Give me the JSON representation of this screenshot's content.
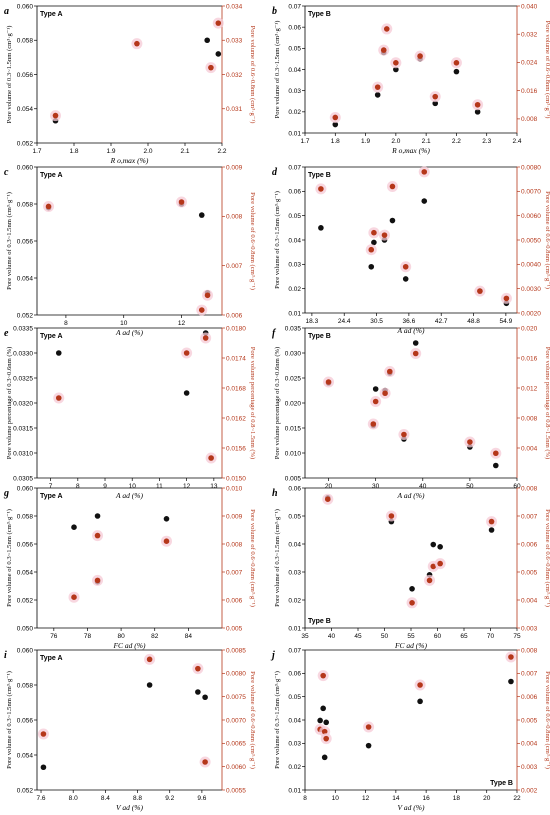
{
  "chart_data": [
    {
      "id": "a",
      "type": "scatter",
      "letter": "a",
      "type_label": "Type A",
      "label_pos": "top-left",
      "xlabel": "R o,max (%)",
      "ylabel": "Pore volume of 0.3~1.5nm (cm³·g⁻¹)",
      "ylabel_right": "Pore volume of 0.6~0.8nm (cm³·g⁻¹)",
      "xlim": [
        1.7,
        2.2
      ],
      "ylim": [
        0.052,
        0.06
      ],
      "ylim_right": [
        0.03,
        0.034
      ],
      "xticks": [
        "1.7",
        "1.8",
        "1.9",
        "2.0",
        "2.1",
        "2.2"
      ],
      "yticks": [
        "0.052",
        "0.054",
        "0.056",
        "0.058",
        "0.060"
      ],
      "yticks_right": [
        "0.031",
        "0.032",
        "0.033",
        "0.034"
      ],
      "series": [
        {
          "axis": "left",
          "points": [
            [
              1.75,
              0.0533
            ],
            [
              2.16,
              0.058
            ],
            [
              2.19,
              0.0572
            ]
          ]
        },
        {
          "axis": "right",
          "points": [
            [
              1.75,
              0.0308
            ],
            [
              1.97,
              0.0329
            ],
            [
              2.17,
              0.0322
            ],
            [
              2.19,
              0.0335
            ]
          ]
        }
      ]
    },
    {
      "id": "b",
      "type": "scatter",
      "letter": "b",
      "type_label": "Type B",
      "label_pos": "top-left",
      "xlabel": "R o,max (%)",
      "ylabel": "Pore volume of 0.3~1.5nm (cm³·g⁻¹)",
      "ylabel_right": "Pore volume of 0.6~0.8nm (cm³·g⁻¹)",
      "xlim": [
        1.7,
        2.4
      ],
      "ylim": [
        0.01,
        0.07
      ],
      "ylim_right": [
        0.004,
        0.04
      ],
      "xticks": [
        "1.7",
        "1.8",
        "1.9",
        "2.0",
        "2.1",
        "2.2",
        "2.3",
        "2.4"
      ],
      "yticks": [
        "0.01",
        "0.02",
        "0.03",
        "0.04",
        "0.05",
        "0.06",
        "0.07"
      ],
      "yticks_right": [
        "0.008",
        "0.016",
        "0.024",
        "0.032",
        "0.040"
      ],
      "series": [
        {
          "axis": "left",
          "points": [
            [
              1.8,
              0.014
            ],
            [
              1.94,
              0.028
            ],
            [
              1.96,
              0.048
            ],
            [
              2.0,
              0.04
            ],
            [
              2.08,
              0.045
            ],
            [
              2.13,
              0.024
            ],
            [
              2.2,
              0.039
            ],
            [
              2.27,
              0.02
            ]
          ]
        },
        {
          "axis": "right",
          "points": [
            [
              1.8,
              0.0084
            ],
            [
              1.94,
              0.017
            ],
            [
              1.96,
              0.0275
            ],
            [
              1.97,
              0.0335
            ],
            [
              2.0,
              0.0239
            ],
            [
              2.08,
              0.0258
            ],
            [
              2.13,
              0.0143
            ],
            [
              2.2,
              0.0239
            ],
            [
              2.27,
              0.012
            ]
          ]
        }
      ]
    },
    {
      "id": "c",
      "type": "scatter",
      "letter": "c",
      "type_label": "Type A",
      "label_pos": "top-left",
      "xlabel": "A ad  (%)",
      "ylabel": "Pore volume of 0.3~1.5nm (cm³·g⁻¹)",
      "ylabel_right": "Pore volume of 0.6~0.8nm (cm³·g⁻¹)",
      "xlim": [
        7,
        13.4
      ],
      "ylim": [
        0.052,
        0.06
      ],
      "ylim_right": [
        0.006,
        0.009
      ],
      "xticks": [
        "8",
        "10",
        "12"
      ],
      "xtick_vals": [
        8,
        10,
        12
      ],
      "yticks": [
        "0.052",
        "0.054",
        "0.056",
        "0.058",
        "0.060"
      ],
      "yticks_right": [
        "0.006",
        "0.007",
        "0.008",
        "0.009"
      ],
      "series": [
        {
          "axis": "left",
          "points": [
            [
              7.4,
              0.0578
            ],
            [
              12,
              0.058
            ],
            [
              12.7,
              0.0574
            ],
            [
              12.9,
              0.0532
            ]
          ]
        },
        {
          "axis": "right",
          "points": [
            [
              7.4,
              0.0082
            ],
            [
              12,
              0.00829
            ],
            [
              12.7,
              0.0061
            ],
            [
              12.9,
              0.0064
            ]
          ]
        }
      ]
    },
    {
      "id": "d",
      "type": "scatter",
      "letter": "d",
      "type_label": "Type B",
      "label_pos": "top-left",
      "xlabel": "A ad  (%)",
      "ylabel": "Pore volume of 0.3~1.5nm (cm³·g⁻¹)",
      "ylabel_right": "Pore volume of 0.6~0.8nm (cm³·g⁻¹)",
      "xlim": [
        17,
        57
      ],
      "ylim": [
        0.01,
        0.07
      ],
      "ylim_right": [
        0.002,
        0.008
      ],
      "xticks": [
        "18.3",
        "24.4",
        "30.5",
        "36.6",
        "42.7",
        "48.8",
        "54.9"
      ],
      "xtick_vals": [
        18.3,
        24.4,
        30.5,
        36.6,
        42.7,
        48.8,
        54.9
      ],
      "yticks": [
        "0.01",
        "0.02",
        "0.03",
        "0.04",
        "0.05",
        "0.06",
        "0.07"
      ],
      "yticks_right": [
        "0.0020",
        "0.0030",
        "0.0040",
        "0.0050",
        "0.0060",
        "0.0070",
        "0.0080"
      ],
      "series": [
        {
          "axis": "left",
          "points": [
            [
              20,
              0.045
            ],
            [
              29.5,
              0.029
            ],
            [
              30,
              0.039
            ],
            [
              32,
              0.04
            ],
            [
              33.5,
              0.048
            ],
            [
              36,
              0.024
            ],
            [
              39.5,
              0.056
            ],
            [
              50,
              0.019
            ],
            [
              55,
              0.014
            ]
          ]
        },
        {
          "axis": "right",
          "points": [
            [
              20,
              0.0071
            ],
            [
              29.5,
              0.0046
            ],
            [
              30,
              0.0053
            ],
            [
              32,
              0.0052
            ],
            [
              33.5,
              0.0072
            ],
            [
              36,
              0.0039
            ],
            [
              39.5,
              0.0078
            ],
            [
              50,
              0.0029
            ],
            [
              55,
              0.0026
            ]
          ]
        }
      ]
    },
    {
      "id": "e",
      "type": "scatter",
      "letter": "e",
      "type_label": "Type A",
      "label_pos": "top-left",
      "xlabel": "A ad  (%)",
      "ylabel": "Pore volume percentage of 0.3~0.6nm (%)",
      "ylabel_right": "Pore volume percentage of 0.8~1.5nm (%)",
      "xlim": [
        6.5,
        13.3
      ],
      "ylim": [
        0.0305,
        0.0335
      ],
      "ylim_right": [
        0.015,
        0.018
      ],
      "xticks": [
        "7",
        "8",
        "9",
        "10",
        "11",
        "12",
        "13"
      ],
      "yticks": [
        "0.0305",
        "0.0310",
        "0.0315",
        "0.0320",
        "0.0325",
        "0.0330",
        "0.0335"
      ],
      "yticks_right": [
        "0.0150",
        "0.0156",
        "0.0162",
        "0.0168",
        "0.0174",
        "0.0180"
      ],
      "series": [
        {
          "axis": "left",
          "points": [
            [
              7.3,
              0.033
            ],
            [
              12,
              0.0322
            ],
            [
              12.7,
              0.0334
            ],
            [
              12.9,
              0.0309
            ]
          ]
        },
        {
          "axis": "right",
          "points": [
            [
              7.3,
              0.0166
            ],
            [
              12,
              0.0175
            ],
            [
              12.7,
              0.0178
            ],
            [
              12.9,
              0.0154
            ]
          ]
        }
      ]
    },
    {
      "id": "f",
      "type": "scatter",
      "letter": "f",
      "type_label": "Type B",
      "label_pos": "top-left",
      "xlabel": "A ad  (%)",
      "ylabel": "Pore volume percentage of 0.3~0.6nm (%)",
      "ylabel_right": "Pore volume percentage of 0.8~1.5nm (%)",
      "xlim": [
        15,
        60
      ],
      "ylim": [
        0.005,
        0.035
      ],
      "ylim_right": [
        0.0,
        0.02
      ],
      "xticks": [
        "20",
        "30",
        "40",
        "50",
        "60"
      ],
      "yticks": [
        "0.005",
        "0.010",
        "0.015",
        "0.020",
        "0.025",
        "0.030",
        "0.035"
      ],
      "yticks_right": [
        "0.004",
        "0.008",
        "0.012",
        "0.016",
        "0.020"
      ],
      "series": [
        {
          "axis": "left",
          "points": [
            [
              20,
              0.024
            ],
            [
              29.5,
              0.0155
            ],
            [
              30,
              0.0228
            ],
            [
              32,
              0.0225
            ],
            [
              33,
              0.026
            ],
            [
              36,
              0.0128
            ],
            [
              38.5,
              0.032
            ],
            [
              50,
              0.0112
            ],
            [
              55.5,
              0.0075
            ]
          ]
        },
        {
          "axis": "right",
          "points": [
            [
              20,
              0.0128
            ],
            [
              29.5,
              0.0072
            ],
            [
              30,
              0.0102
            ],
            [
              32,
              0.0113
            ],
            [
              33,
              0.0142
            ],
            [
              36,
              0.0058
            ],
            [
              38.5,
              0.0166
            ],
            [
              50,
              0.0048
            ],
            [
              55.5,
              0.0033
            ]
          ]
        }
      ]
    },
    {
      "id": "g",
      "type": "scatter",
      "letter": "g",
      "type_label": "Type A",
      "label_pos": "top-left",
      "xlabel": "FC ad  (%)",
      "ylabel": "Pore volume of 0.3~1.5nm (cm³·g⁻¹)",
      "ylabel_right": "Pore volume of 0.6~0.8nm (cm³·g⁻¹)",
      "xlim": [
        75,
        86
      ],
      "ylim": [
        0.05,
        0.06
      ],
      "ylim_right": [
        0.005,
        0.01
      ],
      "xticks": [
        "76",
        "78",
        "80",
        "82",
        "84"
      ],
      "yticks": [
        "0.050",
        "0.052",
        "0.054",
        "0.056",
        "0.058",
        "0.060"
      ],
      "yticks_right": [
        "0.005",
        "0.006",
        "0.007",
        "0.008",
        "0.009",
        "0.010"
      ],
      "series": [
        {
          "axis": "left",
          "points": [
            [
              77.2,
              0.0572
            ],
            [
              78.6,
              0.058
            ],
            [
              78.6,
              0.0533
            ],
            [
              82.7,
              0.0578
            ]
          ]
        },
        {
          "axis": "right",
          "points": [
            [
              77.2,
              0.0061
            ],
            [
              78.6,
              0.0083
            ],
            [
              78.6,
              0.0067
            ],
            [
              82.7,
              0.0081
            ]
          ]
        }
      ]
    },
    {
      "id": "h",
      "type": "scatter",
      "letter": "h",
      "type_label": "Type B",
      "label_pos": "bottom-left",
      "xlabel": "FC ad  (%)",
      "ylabel": "Pore volume of 0.3~1.5nm (cm³·g⁻¹)",
      "ylabel_right": "Pore volume of 0.6~0.8nm (cm³·g⁻¹)",
      "xlim": [
        35,
        75
      ],
      "ylim": [
        0.01,
        0.06
      ],
      "ylim_right": [
        0.003,
        0.008
      ],
      "xticks": [
        "35",
        "40",
        "45",
        "50",
        "55",
        "60",
        "65",
        "70",
        "75"
      ],
      "yticks": [
        "0.01",
        "0.02",
        "0.03",
        "0.04",
        "0.05",
        "0.06"
      ],
      "yticks_right": [
        "0.003",
        "0.004",
        "0.005",
        "0.006",
        "0.007",
        "0.008"
      ],
      "series": [
        {
          "axis": "left",
          "points": [
            [
              39.3,
              0.0565
            ],
            [
              51.3,
              0.048
            ],
            [
              55.2,
              0.024
            ],
            [
              58.5,
              0.029
            ],
            [
              59.2,
              0.0398
            ],
            [
              60.5,
              0.039
            ],
            [
              70.2,
              0.045
            ]
          ]
        },
        {
          "axis": "right",
          "points": [
            [
              39.3,
              0.0076
            ],
            [
              51.3,
              0.007
            ],
            [
              55.2,
              0.0039
            ],
            [
              58.5,
              0.0047
            ],
            [
              59.2,
              0.0052
            ],
            [
              60.5,
              0.0053
            ],
            [
              70.2,
              0.0068
            ]
          ]
        }
      ]
    },
    {
      "id": "i",
      "type": "scatter",
      "letter": "i",
      "type_label": "Type A",
      "label_pos": "top-left",
      "xlabel": "V ad  (%)",
      "ylabel": "Pore volume of 0.3~1.5nm (cm³·g⁻¹)",
      "ylabel_right": "Pore volume of 0.6~0.8nm (cm³·g⁻¹)",
      "xlim": [
        7.55,
        9.85
      ],
      "ylim": [
        0.052,
        0.06
      ],
      "ylim_right": [
        0.0055,
        0.0085
      ],
      "xticks": [
        "7.6",
        "8.0",
        "8.4",
        "8.8",
        "9.2",
        "9.6"
      ],
      "yticks": [
        "0.052",
        "0.054",
        "0.056",
        "0.058",
        "0.060"
      ],
      "yticks_right": [
        "0.0055",
        "0.0060",
        "0.0065",
        "0.0070",
        "0.0075",
        "0.0080",
        "0.0085"
      ],
      "series": [
        {
          "axis": "left",
          "points": [
            [
              7.63,
              0.0533
            ],
            [
              8.95,
              0.058
            ],
            [
              9.55,
              0.0576
            ],
            [
              9.64,
              0.0573
            ]
          ]
        },
        {
          "axis": "right",
          "points": [
            [
              7.63,
              0.0067
            ],
            [
              8.95,
              0.0083
            ],
            [
              9.55,
              0.0081
            ],
            [
              9.64,
              0.0061
            ]
          ]
        }
      ]
    },
    {
      "id": "j",
      "type": "scatter",
      "letter": "j",
      "type_label": "Type B",
      "label_pos": "bottom-right",
      "xlabel": "V ad  (%)",
      "ylabel": "Pore volume of 0.3~1.5nm (cm³·g⁻¹)",
      "ylabel_right": "Pore volume of 0.6~0.8nm (cm³·g⁻¹)",
      "xlim": [
        8,
        22
      ],
      "ylim": [
        0.01,
        0.07
      ],
      "ylim_right": [
        0.002,
        0.008
      ],
      "xticks": [
        "8",
        "10",
        "12",
        "14",
        "16",
        "18",
        "20",
        "22"
      ],
      "yticks": [
        "0.01",
        "0.02",
        "0.03",
        "0.04",
        "0.05",
        "0.06",
        "0.07"
      ],
      "yticks_right": [
        "0.002",
        "0.003",
        "0.004",
        "0.005",
        "0.006",
        "0.007",
        "0.008"
      ],
      "series": [
        {
          "axis": "left",
          "points": [
            [
              9,
              0.0398
            ],
            [
              9.2,
              0.045
            ],
            [
              9.3,
              0.024
            ],
            [
              9.4,
              0.039
            ],
            [
              12.2,
              0.029
            ],
            [
              15.6,
              0.048
            ],
            [
              21.6,
              0.0565
            ]
          ]
        },
        {
          "axis": "right",
          "points": [
            [
              9,
              0.0046
            ],
            [
              9.2,
              0.0069
            ],
            [
              9.3,
              0.0045
            ],
            [
              9.4,
              0.0042
            ],
            [
              12.2,
              0.0047
            ],
            [
              15.6,
              0.0065
            ],
            [
              21.6,
              0.0077
            ]
          ]
        }
      ]
    }
  ]
}
